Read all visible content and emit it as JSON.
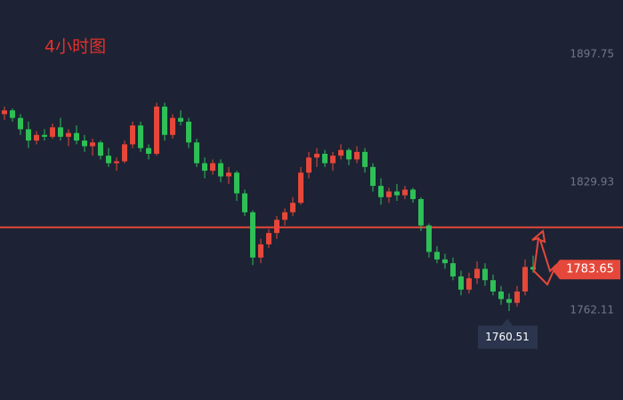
{
  "chart_data": {
    "type": "candlestick",
    "title": "4小时图",
    "open": [
      1866,
      1868,
      1864,
      1858,
      1852,
      1855,
      1854,
      1859,
      1854,
      1856,
      1852,
      1849,
      1851,
      1844,
      1840,
      1841,
      1850,
      1860,
      1848,
      1845,
      1870,
      1855,
      1864,
      1862,
      1851,
      1840,
      1836,
      1840,
      1833,
      1835,
      1824,
      1814,
      1790,
      1797,
      1803,
      1810,
      1814,
      1819,
      1835,
      1843,
      1845,
      1840,
      1844,
      1847,
      1842,
      1846,
      1838,
      1828,
      1822,
      1825,
      1823,
      1826,
      1821,
      1807,
      1793,
      1789,
      1787,
      1780,
      1773,
      1779,
      1784,
      1778,
      1772,
      1768,
      1766,
      1772,
      1785
    ],
    "high": [
      1870,
      1869,
      1866,
      1862,
      1857,
      1858,
      1861,
      1864,
      1858,
      1860,
      1855,
      1853,
      1852,
      1848,
      1843,
      1852,
      1862,
      1862,
      1850,
      1872,
      1872,
      1866,
      1868,
      1864,
      1853,
      1843,
      1842,
      1842,
      1838,
      1836,
      1826,
      1815,
      1800,
      1805,
      1812,
      1816,
      1822,
      1838,
      1846,
      1848,
      1847,
      1846,
      1850,
      1848,
      1849,
      1848,
      1840,
      1832,
      1827,
      1829,
      1828,
      1827,
      1822,
      1808,
      1796,
      1792,
      1790,
      1783,
      1782,
      1788,
      1787,
      1781,
      1775,
      1771,
      1775,
      1789,
      1791
    ],
    "low": [
      1863,
      1862,
      1855,
      1848,
      1850,
      1852,
      1853,
      1852,
      1849,
      1850,
      1846,
      1844,
      1842,
      1838,
      1836,
      1840,
      1848,
      1846,
      1842,
      1844,
      1852,
      1853,
      1860,
      1848,
      1838,
      1832,
      1834,
      1830,
      1829,
      1820,
      1812,
      1786,
      1787,
      1795,
      1800,
      1807,
      1812,
      1818,
      1832,
      1838,
      1838,
      1836,
      1842,
      1839,
      1840,
      1835,
      1825,
      1818,
      1819,
      1820,
      1821,
      1819,
      1804,
      1790,
      1787,
      1784,
      1778,
      1770,
      1771,
      1776,
      1775,
      1770,
      1765,
      1761.6,
      1764,
      1770,
      1782
    ],
    "close": [
      1868,
      1864,
      1858,
      1852,
      1855,
      1854,
      1859,
      1854,
      1856,
      1852,
      1849,
      1851,
      1844,
      1840,
      1841,
      1850,
      1860,
      1848,
      1845,
      1870,
      1855,
      1864,
      1862,
      1851,
      1840,
      1836,
      1840,
      1833,
      1835,
      1824,
      1814,
      1790,
      1797,
      1803,
      1810,
      1814,
      1819,
      1835,
      1843,
      1845,
      1840,
      1844,
      1847,
      1842,
      1846,
      1838,
      1828,
      1822,
      1825,
      1823,
      1826,
      1821,
      1807,
      1793,
      1789,
      1787,
      1780,
      1773,
      1779,
      1784,
      1778,
      1772,
      1768,
      1766,
      1772,
      1785,
      1783.65
    ],
    "up_color": "#e5483a",
    "down_color": "#2fbf57",
    "ylim": [
      1714.5,
      1926.5
    ],
    "yticks": [
      1762.11,
      1829.93,
      1897.75
    ],
    "level": 1806,
    "level_color": "#e5483a",
    "last_price": 1783.65,
    "low_label": 1760.51
  }
}
